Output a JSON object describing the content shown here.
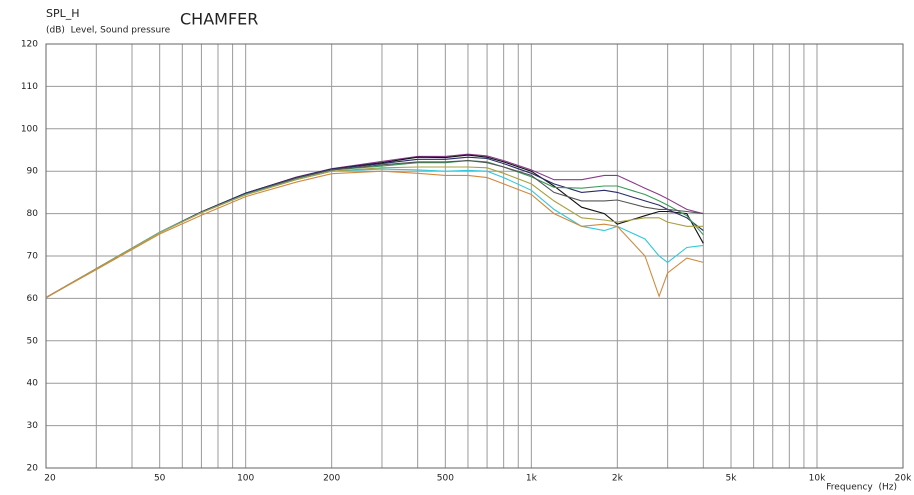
{
  "chart_data": {
    "type": "line",
    "title": "SPL_H",
    "subtitle": "(dB)  Level, Sound pressure",
    "annotation": "CHAMFER",
    "x_label": "Frequency  (Hz)",
    "log_x": true,
    "grid": true,
    "xlim": [
      20,
      20000
    ],
    "ylim": [
      20,
      120
    ],
    "xticks": [
      20,
      50,
      100,
      200,
      500,
      {
        "value": 1000,
        "label": "1k"
      },
      {
        "value": 2000,
        "label": "2k"
      },
      {
        "value": 5000,
        "label": "5k"
      },
      {
        "value": 10000,
        "label": "10k"
      },
      {
        "value": 20000,
        "label": "20k"
      }
    ],
    "x_minor_grid": [
      30,
      40,
      60,
      70,
      80,
      90,
      300,
      400,
      600,
      700,
      800,
      900,
      3000,
      4000,
      6000,
      7000,
      8000,
      9000
    ],
    "yticks": [
      20,
      30,
      40,
      50,
      60,
      70,
      80,
      90,
      100,
      110,
      120
    ],
    "x": [
      20,
      30,
      50,
      70,
      100,
      150,
      200,
      300,
      400,
      500,
      600,
      700,
      800,
      1000,
      1200,
      1500,
      1800,
      2000,
      2500,
      2800,
      3000,
      3500,
      4000
    ],
    "series": [
      {
        "color": "#8a3a8a",
        "values": [
          60.2,
          67,
          75.6,
          80.4,
          84.8,
          88.6,
          90.6,
          92.3,
          93.5,
          93.5,
          94,
          93.6,
          92.5,
          90.3,
          88,
          88,
          89,
          89,
          86,
          84.5,
          83.5,
          81,
          80
        ]
      },
      {
        "color": "#111111",
        "values": [
          60.2,
          67,
          75.6,
          80.4,
          84.8,
          88.5,
          90.5,
          92,
          93.3,
          93.2,
          93.8,
          93.3,
          92.2,
          90,
          86.5,
          81.5,
          80,
          77.5,
          79.5,
          80.5,
          80.5,
          80,
          73
        ]
      },
      {
        "color": "#2a2a6a",
        "values": [
          60.2,
          67,
          75.6,
          80.4,
          84.8,
          88.5,
          90.5,
          91.8,
          92.8,
          92.8,
          93.3,
          93,
          91.8,
          89.5,
          87,
          85,
          85.5,
          85,
          83,
          82,
          81,
          79,
          76
        ]
      },
      {
        "color": "#3a9a5a",
        "values": [
          60.2,
          67,
          75.6,
          80.3,
          84.6,
          88.3,
          90.3,
          91.2,
          92,
          92,
          92.5,
          92.2,
          91,
          88.7,
          86.2,
          86,
          86.5,
          86.5,
          84.5,
          83,
          82,
          79.5,
          75
        ]
      },
      {
        "color": "#555555",
        "values": [
          60.2,
          67,
          75.6,
          80.3,
          84.6,
          88.3,
          90.3,
          91.5,
          92.2,
          92.2,
          92.5,
          92,
          91,
          89,
          85,
          83,
          83,
          83.2,
          81.5,
          81,
          81,
          80.5,
          80
        ]
      },
      {
        "color": "#30c8dc",
        "values": [
          60.2,
          67,
          75.6,
          80.2,
          84.5,
          88,
          90,
          90.5,
          90.3,
          90,
          90.2,
          90,
          88.5,
          85.5,
          81,
          77,
          76,
          77,
          74,
          70,
          68.5,
          72,
          72.5
        ]
      },
      {
        "color": "#a8a040",
        "values": [
          60.2,
          67,
          75.5,
          80.2,
          84.4,
          88,
          90,
          90.8,
          91,
          91,
          91,
          90.8,
          89.5,
          87,
          83,
          79,
          78.5,
          78,
          79,
          79,
          78,
          77,
          77
        ]
      },
      {
        "color": "#d08a40",
        "values": [
          60.2,
          66.8,
          75.2,
          79.6,
          84,
          87.4,
          89.4,
          90,
          89.5,
          89,
          89,
          88.5,
          87,
          84.5,
          80,
          77,
          77.5,
          77,
          70,
          60.5,
          66,
          69.5,
          68.5
        ]
      }
    ]
  }
}
